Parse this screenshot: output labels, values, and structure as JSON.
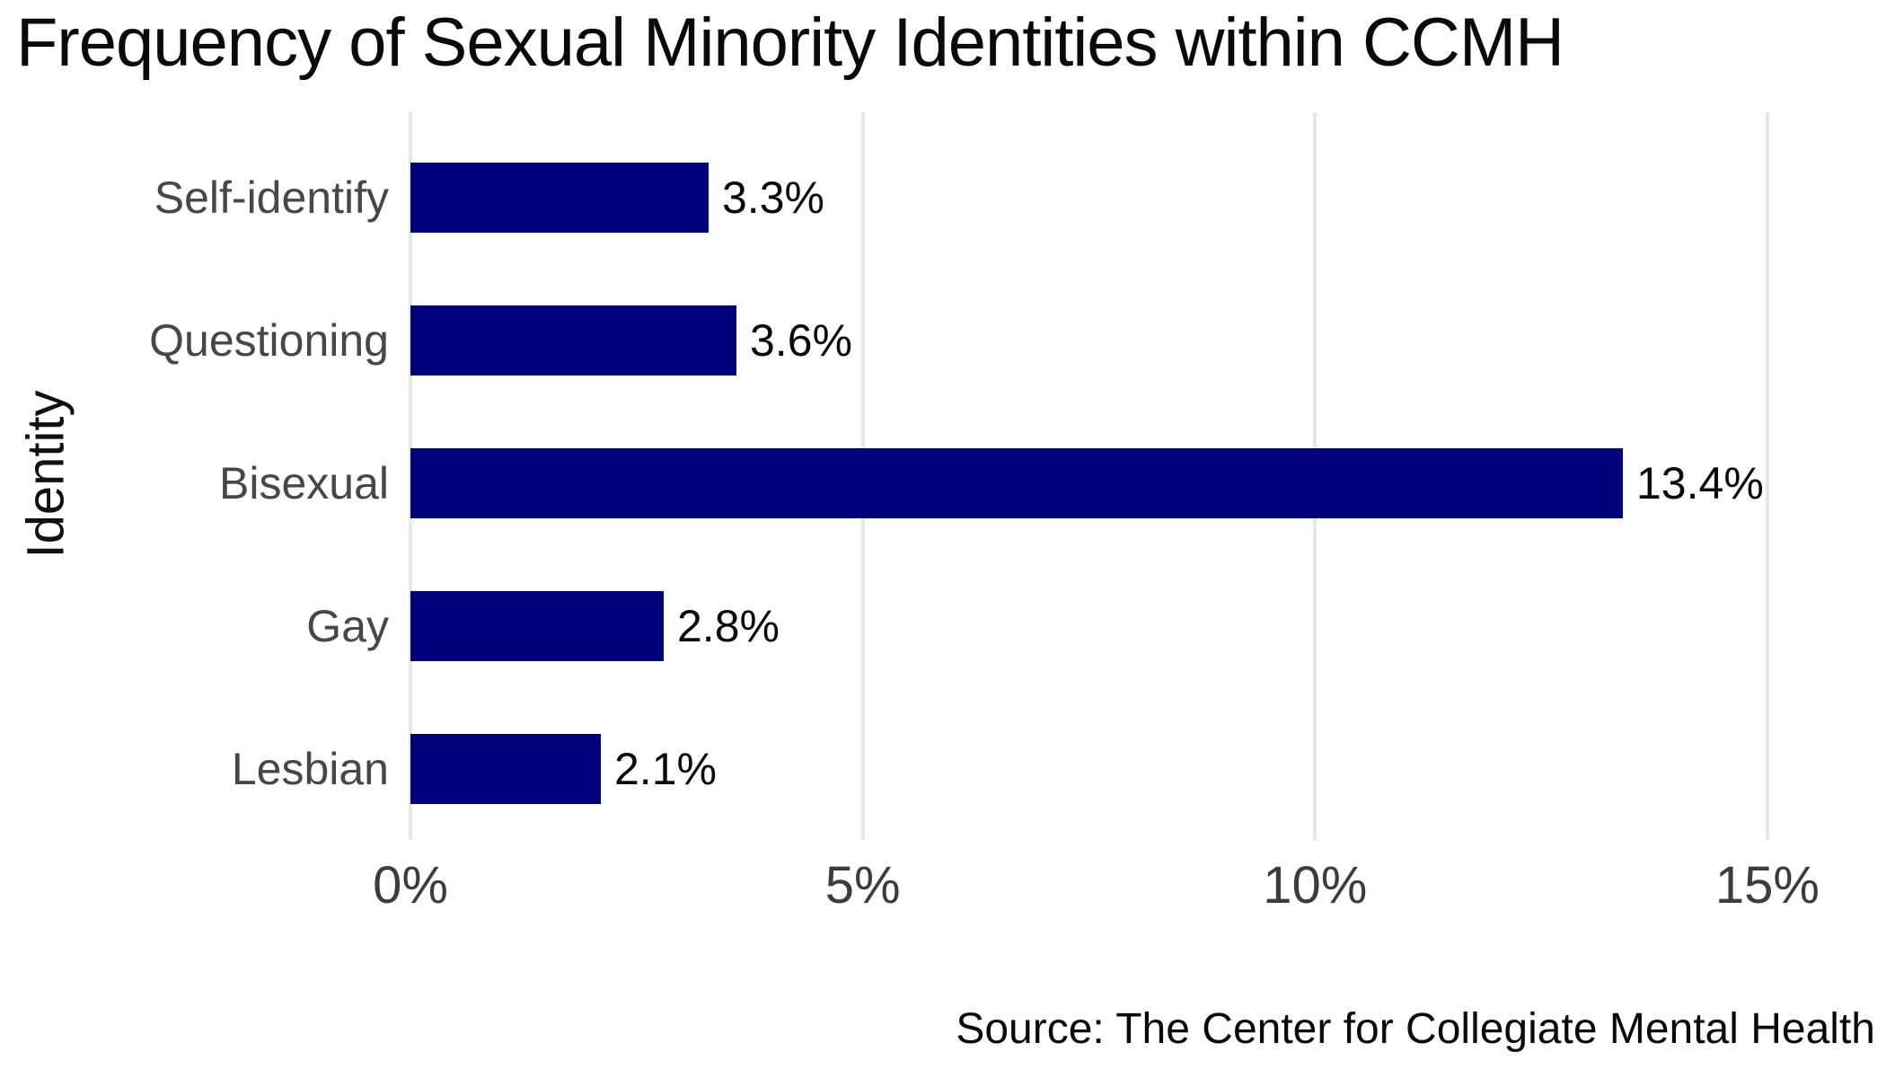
{
  "title": "Frequency of Sexual Minority Identities within CCMH",
  "y_axis_label": "Identity",
  "source": "Source: The Center for Collegiate Mental Health",
  "colors": {
    "bar": "#00007a",
    "gridline": "#e7e7e7",
    "category_label": "#474747",
    "tick_label": "#3c3c3c",
    "value_label": "#0a0a0a",
    "title": "#0a0a0a",
    "background": "#ffffff"
  },
  "chart_data": {
    "type": "bar",
    "orientation": "horizontal",
    "title": "Frequency of Sexual Minority Identities within CCMH",
    "xlabel": "",
    "ylabel": "Identity",
    "categories": [
      "Self-identify",
      "Questioning",
      "Bisexual",
      "Gay",
      "Lesbian"
    ],
    "values": [
      3.3,
      3.6,
      13.4,
      2.8,
      2.1
    ],
    "value_labels": [
      "3.3%",
      "3.6%",
      "13.4%",
      "2.8%",
      "2.1%"
    ],
    "x_ticks": [
      "0%",
      "5%",
      "10%",
      "15%"
    ],
    "x_tick_values": [
      0,
      5,
      10,
      15
    ],
    "xlim": [
      0,
      15.8
    ],
    "grid": "vertical-only",
    "legend": "none",
    "source": "Source: The Center for Collegiate Mental Health"
  }
}
